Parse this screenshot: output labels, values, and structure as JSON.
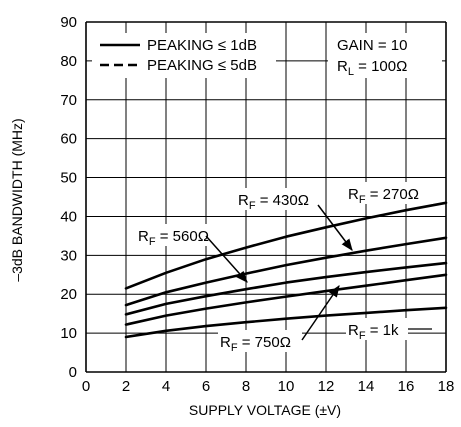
{
  "chart_data": {
    "type": "line",
    "xlabel": "SUPPLY VOLTAGE (±V)",
    "ylabel": "–3dB BANDWIDTH (MHz)",
    "xlim": [
      0,
      18
    ],
    "ylim": [
      0,
      90
    ],
    "x_ticks": [
      "0",
      "2",
      "4",
      "6",
      "8",
      "10",
      "12",
      "14",
      "16",
      "18"
    ],
    "y_ticks": [
      "0",
      "10",
      "20",
      "30",
      "40",
      "50",
      "60",
      "70",
      "80",
      "90"
    ],
    "grid": true,
    "legend_position": "top-left",
    "legend": [
      {
        "label": "PEAKING ≤ 1dB",
        "style": "solid"
      },
      {
        "label": "PEAKING ≤ 5dB",
        "style": "dashed"
      }
    ],
    "conditions": [
      {
        "main": "GAIN = 10",
        "sub": ""
      },
      {
        "main": "R",
        "sub": "L",
        "rest": " = 100Ω"
      }
    ],
    "series": [
      {
        "label": "R_F = 270Ω",
        "x": [
          2,
          4,
          6,
          8,
          10,
          12,
          14,
          16,
          18
        ],
        "y": [
          21.5,
          25.5,
          29.0,
          32.0,
          34.8,
          37.2,
          39.5,
          41.6,
          43.5
        ]
      },
      {
        "label": "R_F = 430Ω",
        "x": [
          2,
          4,
          6,
          8,
          10,
          12,
          14,
          16,
          18
        ],
        "y": [
          17.2,
          20.5,
          23.0,
          25.3,
          27.5,
          29.4,
          31.2,
          32.9,
          34.5
        ]
      },
      {
        "label": "R_F = 560Ω",
        "x": [
          2,
          4,
          6,
          8,
          10,
          12,
          14,
          16,
          18
        ],
        "y": [
          14.8,
          17.5,
          19.5,
          21.3,
          23.0,
          24.4,
          25.7,
          26.9,
          28.0
        ]
      },
      {
        "label": "R_F = 750Ω",
        "x": [
          2,
          4,
          6,
          8,
          10,
          12,
          14,
          16,
          18
        ],
        "y": [
          12.2,
          14.5,
          16.3,
          17.9,
          19.4,
          20.8,
          22.2,
          23.6,
          25.0
        ]
      },
      {
        "label": "R_F = 1k",
        "x": [
          2,
          4,
          6,
          8,
          10,
          12,
          14,
          16,
          18
        ],
        "y": [
          9.0,
          10.6,
          11.8,
          12.8,
          13.7,
          14.5,
          15.2,
          15.9,
          16.5
        ]
      }
    ],
    "annotations": [
      {
        "pre": "R",
        "sub": "F",
        "rest": " = 430Ω",
        "points_to": "R_F = 430Ω"
      },
      {
        "pre": "R",
        "sub": "F",
        "rest": " = 270Ω",
        "points_to": "R_F = 270Ω"
      },
      {
        "pre": "R",
        "sub": "F",
        "rest": " = 560Ω",
        "points_to": "R_F = 560Ω"
      },
      {
        "pre": "R",
        "sub": "F",
        "rest": " = 750Ω",
        "points_to": "R_F = 750Ω"
      },
      {
        "pre": "R",
        "sub": "F",
        "rest": " = 1k",
        "points_to": "R_F = 1k"
      }
    ]
  }
}
